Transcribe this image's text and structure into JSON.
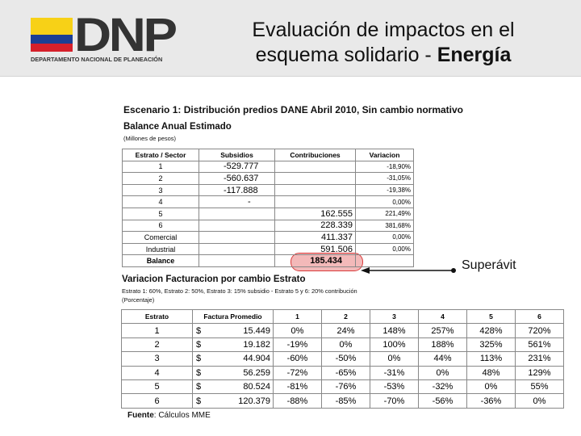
{
  "header": {
    "logo_text": "DNP",
    "logo_subtitle": "DEPARTAMENTO NACIONAL DE PLANEACIÓN",
    "title_line1": "Evaluación de impactos en el",
    "title_line2_prefix": "esquema solidario - ",
    "title_line2_bold": "Energía",
    "flag_colors": [
      "#f7d117",
      "#1b3f94",
      "#d6202b"
    ]
  },
  "scenario": {
    "label": "Escenario 1:",
    "text": " Distribución predios DANE Abril 2010, Sin cambio normativo"
  },
  "balance": {
    "title": "Balance Anual Estimado",
    "units": "(Millones de pesos)",
    "headers": [
      "Estrato / Sector",
      "Subsidios",
      "Contribuciones",
      "Variacion"
    ],
    "rows": [
      {
        "estrato": "1",
        "subsidios": "-529.777",
        "contribuciones": "",
        "variacion": "-18,90%"
      },
      {
        "estrato": "2",
        "subsidios": "-560.637",
        "contribuciones": "",
        "variacion": "-31,05%"
      },
      {
        "estrato": "3",
        "subsidios": "-117.888",
        "contribuciones": "",
        "variacion": "-19,38%"
      },
      {
        "estrato": "4",
        "subsidios": "-",
        "contribuciones": "",
        "variacion": "0,00%"
      },
      {
        "estrato": "5",
        "subsidios": "",
        "contribuciones": "162.555",
        "variacion": "221,49%"
      },
      {
        "estrato": "6",
        "subsidios": "",
        "contribuciones": "228.339",
        "variacion": "381,68%"
      },
      {
        "estrato": "Comercial",
        "subsidios": "",
        "contribuciones": "411.337",
        "variacion": "0,00%"
      },
      {
        "estrato": "Industrial",
        "subsidios": "",
        "contribuciones": "591.506",
        "variacion": "0,00%"
      },
      {
        "estrato": "Balance",
        "subsidios": "",
        "contribuciones": "185.434",
        "variacion": ""
      }
    ],
    "callout": "Superávit"
  },
  "variation": {
    "title": "Variacion Facturacion por cambio Estrato",
    "subtitle": "Estrato 1: 60%, Estrato 2: 50%, Estrato 3: 15% subsidio - Estrato 5 y 6: 20% contribución",
    "units": "(Porcentaje)",
    "headers": [
      "Estrato",
      "Factura Promedio",
      "1",
      "2",
      "3",
      "4",
      "5",
      "6"
    ],
    "rows": [
      {
        "estrato": "1",
        "currency": "$",
        "factura": "15.449",
        "p": [
          "0%",
          "24%",
          "148%",
          "257%",
          "428%",
          "720%"
        ]
      },
      {
        "estrato": "2",
        "currency": "$",
        "factura": "19.182",
        "p": [
          "-19%",
          "0%",
          "100%",
          "188%",
          "325%",
          "561%"
        ]
      },
      {
        "estrato": "3",
        "currency": "$",
        "factura": "44.904",
        "p": [
          "-60%",
          "-50%",
          "0%",
          "44%",
          "113%",
          "231%"
        ]
      },
      {
        "estrato": "4",
        "currency": "$",
        "factura": "56.259",
        "p": [
          "-72%",
          "-65%",
          "-31%",
          "0%",
          "48%",
          "129%"
        ]
      },
      {
        "estrato": "5",
        "currency": "$",
        "factura": "80.524",
        "p": [
          "-81%",
          "-76%",
          "-53%",
          "-32%",
          "0%",
          "55%"
        ]
      },
      {
        "estrato": "6",
        "currency": "$",
        "factura": "120.379",
        "p": [
          "-88%",
          "-85%",
          "-70%",
          "-56%",
          "-36%",
          "0%"
        ]
      }
    ]
  },
  "footer": {
    "label": "Fuente",
    "text": ": Cálculos MME"
  }
}
